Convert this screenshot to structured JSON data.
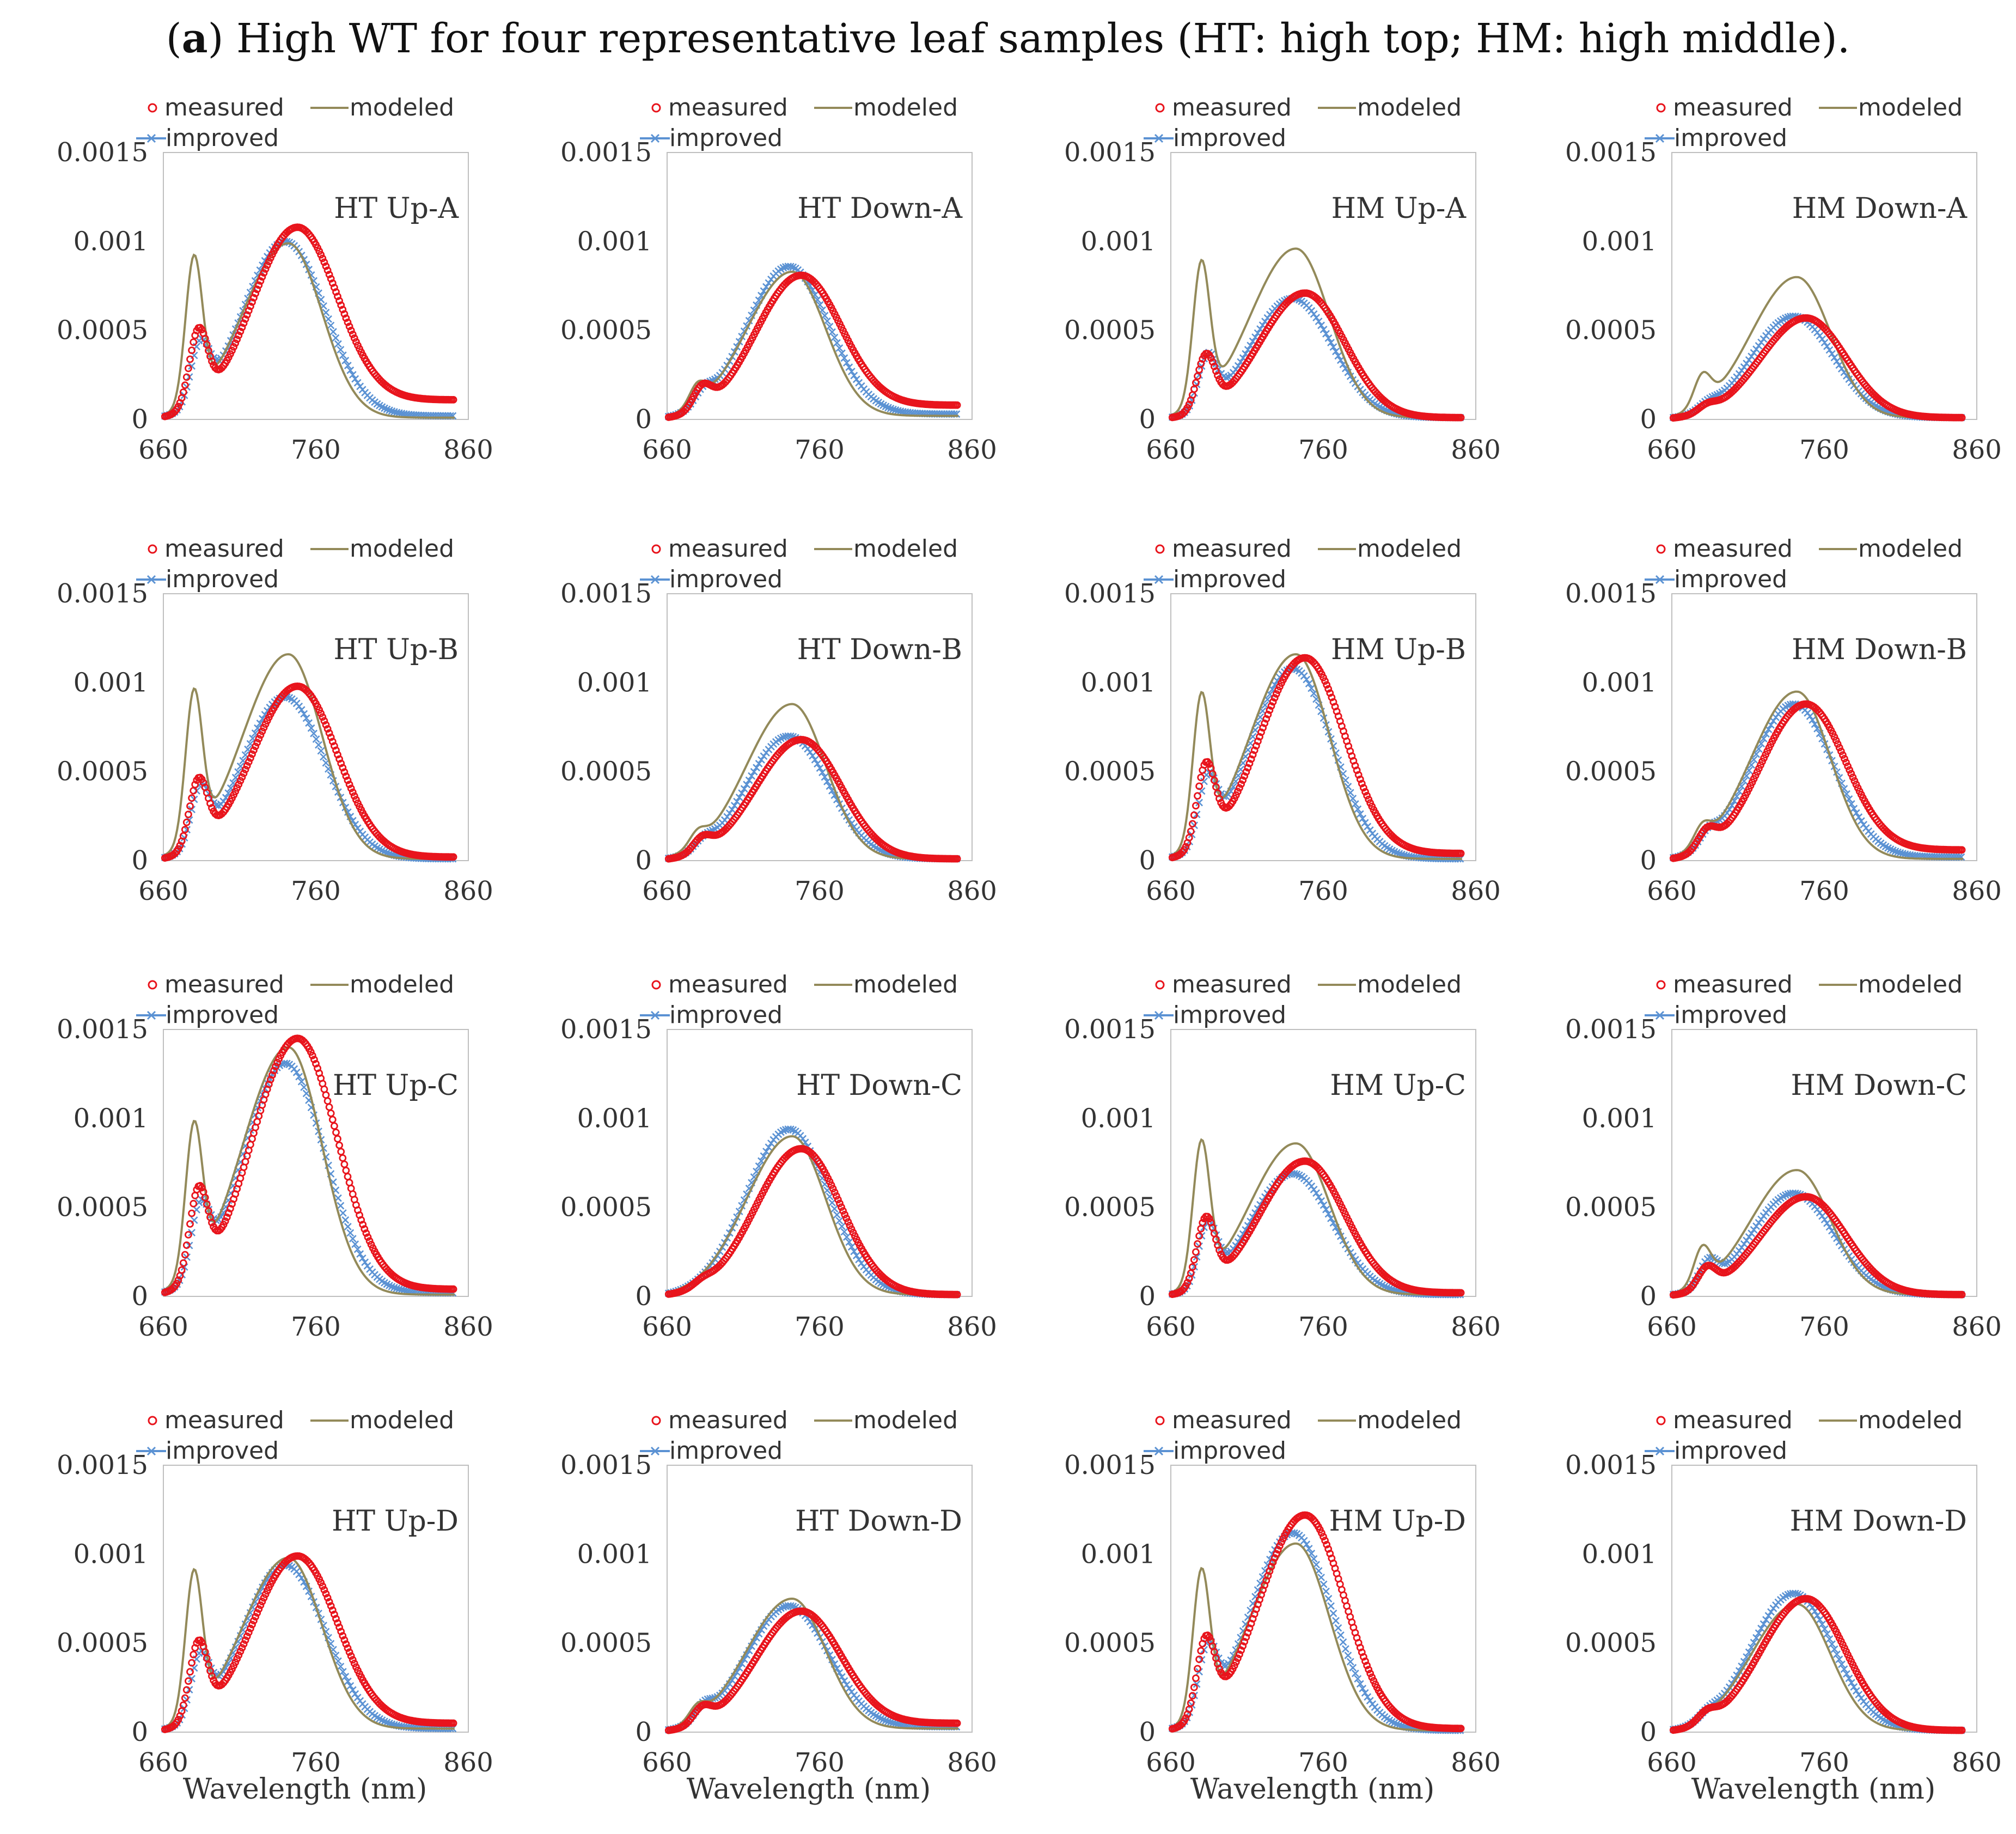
{
  "figure": {
    "label": "a",
    "caption": "High WT for four representative leaf samples (HT: high top; HM: high middle)."
  },
  "legend": {
    "measured": "measured",
    "modeled": "modeled",
    "improved": "improved"
  },
  "colors": {
    "measured": "#e8141c",
    "modeled": "#938a5a",
    "improved": "#5b92d3",
    "axis": "#bfbfbf"
  },
  "chart_data": [
    {
      "type": "line",
      "title": "HT Up-A",
      "xlabel": "",
      "xlim": [
        660,
        860
      ],
      "ylim": [
        0,
        0.0015
      ],
      "xticks": [
        660,
        760,
        860
      ],
      "yticks": [
        "0",
        "0.0005",
        "0.001",
        "0.0015"
      ],
      "series": [
        {
          "name": "measured",
          "peak1": 0.00053,
          "peak2": 0.00108,
          "end": 0.00011
        },
        {
          "name": "modeled",
          "peak1": 0.00097,
          "peak2": 0.00099,
          "end": 1e-05
        },
        {
          "name": "improved",
          "peak1": 0.00046,
          "peak2": 0.001,
          "end": 2e-05
        }
      ]
    },
    {
      "type": "line",
      "title": "HT Down-A",
      "xlabel": "",
      "xlim": [
        660,
        860
      ],
      "ylim": [
        0,
        0.0015
      ],
      "xticks": [
        660,
        760,
        860
      ],
      "yticks": [
        "0",
        "0.0005",
        "0.001",
        "0.0015"
      ],
      "series": [
        {
          "name": "measured",
          "peak1": 0.00021,
          "peak2": 0.00081,
          "end": 8e-05
        },
        {
          "name": "modeled",
          "peak1": 0.00025,
          "peak2": 0.00083,
          "end": 2e-05
        },
        {
          "name": "improved",
          "peak1": 0.0002,
          "peak2": 0.00086,
          "end": 3e-05
        }
      ]
    },
    {
      "type": "line",
      "title": "HM Up-A",
      "xlabel": "",
      "xlim": [
        660,
        860
      ],
      "ylim": [
        0,
        0.0015
      ],
      "xticks": [
        660,
        760,
        860
      ],
      "yticks": [
        "0",
        "0.0005",
        "0.001",
        "0.0015"
      ],
      "series": [
        {
          "name": "measured",
          "peak1": 0.00038,
          "peak2": 0.00071,
          "end": 1e-05
        },
        {
          "name": "modeled",
          "peak1": 0.00094,
          "peak2": 0.00096,
          "end": 1e-05
        },
        {
          "name": "improved",
          "peak1": 0.00038,
          "peak2": 0.00068,
          "end": 1e-05
        }
      ]
    },
    {
      "type": "line",
      "title": "HM Down-A",
      "xlabel": "",
      "xlim": [
        660,
        860
      ],
      "ylim": [
        0,
        0.0015
      ],
      "xticks": [
        660,
        760,
        860
      ],
      "yticks": [
        "0",
        "0.0005",
        "0.001",
        "0.0015"
      ],
      "series": [
        {
          "name": "measured",
          "peak1": 0.0001,
          "peak2": 0.00057,
          "end": 1e-05
        },
        {
          "name": "modeled",
          "peak1": 0.0003,
          "peak2": 0.0008,
          "end": 1e-05
        },
        {
          "name": "improved",
          "peak1": 0.00012,
          "peak2": 0.00058,
          "end": 1e-05
        }
      ]
    },
    {
      "type": "line",
      "title": "HT Up-B",
      "xlabel": "",
      "xlim": [
        660,
        860
      ],
      "ylim": [
        0,
        0.0015
      ],
      "xticks": [
        660,
        760,
        860
      ],
      "yticks": [
        "0",
        "0.0005",
        "0.001",
        "0.0015"
      ],
      "series": [
        {
          "name": "measured",
          "peak1": 0.00048,
          "peak2": 0.00098,
          "end": 2e-05
        },
        {
          "name": "modeled",
          "peak1": 0.00102,
          "peak2": 0.00116,
          "end": 1e-05
        },
        {
          "name": "improved",
          "peak1": 0.00044,
          "peak2": 0.00092,
          "end": 1e-05
        }
      ]
    },
    {
      "type": "line",
      "title": "HT Down-B",
      "xlabel": "",
      "xlim": [
        660,
        860
      ],
      "ylim": [
        0,
        0.0015
      ],
      "xticks": [
        660,
        760,
        860
      ],
      "yticks": [
        "0",
        "0.0005",
        "0.001",
        "0.0015"
      ],
      "series": [
        {
          "name": "measured",
          "peak1": 0.00015,
          "peak2": 0.00068,
          "end": 1e-05
        },
        {
          "name": "modeled",
          "peak1": 0.00022,
          "peak2": 0.00088,
          "end": 1e-05
        },
        {
          "name": "improved",
          "peak1": 0.00015,
          "peak2": 0.0007,
          "end": 1e-05
        }
      ]
    },
    {
      "type": "line",
      "title": "HM Up-B",
      "xlabel": "",
      "xlim": [
        660,
        860
      ],
      "ylim": [
        0,
        0.0015
      ],
      "xticks": [
        660,
        760,
        860
      ],
      "yticks": [
        "0",
        "0.0005",
        "0.001",
        "0.0015"
      ],
      "series": [
        {
          "name": "measured",
          "peak1": 0.00057,
          "peak2": 0.00114,
          "end": 4e-05
        },
        {
          "name": "modeled",
          "peak1": 0.001,
          "peak2": 0.00116,
          "end": 1e-05
        },
        {
          "name": "improved",
          "peak1": 0.0005,
          "peak2": 0.00108,
          "end": 1e-05
        }
      ]
    },
    {
      "type": "line",
      "title": "HM Down-B",
      "xlabel": "",
      "xlim": [
        660,
        860
      ],
      "ylim": [
        0,
        0.0015
      ],
      "xticks": [
        660,
        760,
        860
      ],
      "yticks": [
        "0",
        "0.0005",
        "0.001",
        "0.0015"
      ],
      "series": [
        {
          "name": "measured",
          "peak1": 0.0002,
          "peak2": 0.00088,
          "end": 6e-05
        },
        {
          "name": "modeled",
          "peak1": 0.00026,
          "peak2": 0.00095,
          "end": 1e-05
        },
        {
          "name": "improved",
          "peak1": 0.0002,
          "peak2": 0.00088,
          "end": 2e-05
        }
      ]
    },
    {
      "type": "line",
      "title": "HT Up-C",
      "xlabel": "",
      "xlim": [
        660,
        860
      ],
      "ylim": [
        0,
        0.0015
      ],
      "xticks": [
        660,
        760,
        860
      ],
      "yticks": [
        "0",
        "0.0005",
        "0.001",
        "0.0015"
      ],
      "series": [
        {
          "name": "measured",
          "peak1": 0.00064,
          "peak2": 0.00145,
          "end": 4e-05
        },
        {
          "name": "modeled",
          "peak1": 0.00105,
          "peak2": 0.0014,
          "end": 1e-05
        },
        {
          "name": "improved",
          "peak1": 0.00055,
          "peak2": 0.00131,
          "end": 2e-05
        }
      ]
    },
    {
      "type": "line",
      "title": "HT Down-C",
      "xlabel": "",
      "xlim": [
        660,
        860
      ],
      "ylim": [
        0,
        0.0015
      ],
      "xticks": [
        660,
        760,
        860
      ],
      "yticks": [
        "0",
        "0.0005",
        "0.001",
        "0.0015"
      ],
      "series": [
        {
          "name": "measured",
          "peak1": 0.00012,
          "peak2": 0.00083,
          "end": 1e-05
        },
        {
          "name": "modeled",
          "peak1": 0.00012,
          "peak2": 0.0009,
          "end": 1e-05
        },
        {
          "name": "improved",
          "peak1": 0.00012,
          "peak2": 0.00094,
          "end": 1e-05
        }
      ]
    },
    {
      "type": "line",
      "title": "HM Up-C",
      "xlabel": "",
      "xlim": [
        660,
        860
      ],
      "ylim": [
        0,
        0.0015
      ],
      "xticks": [
        660,
        760,
        860
      ],
      "yticks": [
        "0",
        "0.0005",
        "0.001",
        "0.0015"
      ],
      "series": [
        {
          "name": "measured",
          "peak1": 0.00046,
          "peak2": 0.00076,
          "end": 2e-05
        },
        {
          "name": "modeled",
          "peak1": 0.00092,
          "peak2": 0.00086,
          "end": 1e-05
        },
        {
          "name": "improved",
          "peak1": 0.00043,
          "peak2": 0.00069,
          "end": 1e-05
        }
      ]
    },
    {
      "type": "line",
      "title": "HM Down-C",
      "xlabel": "",
      "xlim": [
        660,
        860
      ],
      "ylim": [
        0,
        0.0015
      ],
      "xticks": [
        660,
        760,
        860
      ],
      "yticks": [
        "0",
        "0.0005",
        "0.001",
        "0.0015"
      ],
      "series": [
        {
          "name": "measured",
          "peak1": 0.00018,
          "peak2": 0.00056,
          "end": 1e-05
        },
        {
          "name": "modeled",
          "peak1": 0.00032,
          "peak2": 0.00071,
          "end": 1e-05
        },
        {
          "name": "improved",
          "peak1": 0.00022,
          "peak2": 0.00058,
          "end": 1e-05
        }
      ]
    },
    {
      "type": "line",
      "title": "HT Up-D",
      "xlabel": "Wavelength (nm)",
      "xlim": [
        660,
        860
      ],
      "ylim": [
        0,
        0.0015
      ],
      "xticks": [
        660,
        760,
        860
      ],
      "yticks": [
        "0",
        "0.0005",
        "0.001",
        "0.0015"
      ],
      "series": [
        {
          "name": "measured",
          "peak1": 0.00053,
          "peak2": 0.00099,
          "end": 5e-05
        },
        {
          "name": "modeled",
          "peak1": 0.00096,
          "peak2": 0.00098,
          "end": 2e-05
        },
        {
          "name": "improved",
          "peak1": 0.00046,
          "peak2": 0.00094,
          "end": 2e-05
        }
      ]
    },
    {
      "type": "line",
      "title": "HT Down-D",
      "xlabel": "Wavelength (nm)",
      "xlim": [
        660,
        860
      ],
      "ylim": [
        0,
        0.0015
      ],
      "xticks": [
        660,
        760,
        860
      ],
      "yticks": [
        "0",
        "0.0005",
        "0.001",
        "0.0015"
      ],
      "series": [
        {
          "name": "measured",
          "peak1": 0.00016,
          "peak2": 0.00068,
          "end": 5e-05
        },
        {
          "name": "modeled",
          "peak1": 0.0002,
          "peak2": 0.00075,
          "end": 2e-05
        },
        {
          "name": "improved",
          "peak1": 0.00018,
          "peak2": 0.00071,
          "end": 3e-05
        }
      ]
    },
    {
      "type": "line",
      "title": "HM Up-D",
      "xlabel": "Wavelength (nm)",
      "xlim": [
        660,
        860
      ],
      "ylim": [
        0,
        0.0015
      ],
      "xticks": [
        660,
        760,
        860
      ],
      "yticks": [
        "0",
        "0.0005",
        "0.001",
        "0.0015"
      ],
      "series": [
        {
          "name": "measured",
          "peak1": 0.00056,
          "peak2": 0.00122,
          "end": 2e-05
        },
        {
          "name": "modeled",
          "peak1": 0.00097,
          "peak2": 0.00106,
          "end": 1e-05
        },
        {
          "name": "improved",
          "peak1": 0.00052,
          "peak2": 0.00112,
          "end": 1e-05
        }
      ]
    },
    {
      "type": "line",
      "title": "HM Down-D",
      "xlabel": "Wavelength (nm)",
      "xlim": [
        660,
        860
      ],
      "ylim": [
        0,
        0.0015
      ],
      "xticks": [
        660,
        760,
        860
      ],
      "yticks": [
        "0",
        "0.0005",
        "0.001",
        "0.0015"
      ],
      "series": [
        {
          "name": "measured",
          "peak1": 0.00014,
          "peak2": 0.00075,
          "end": 1e-05
        },
        {
          "name": "modeled",
          "peak1": 0.00015,
          "peak2": 0.00072,
          "end": 1e-05
        },
        {
          "name": "improved",
          "peak1": 0.00015,
          "peak2": 0.00078,
          "end": 1e-05
        }
      ]
    }
  ]
}
